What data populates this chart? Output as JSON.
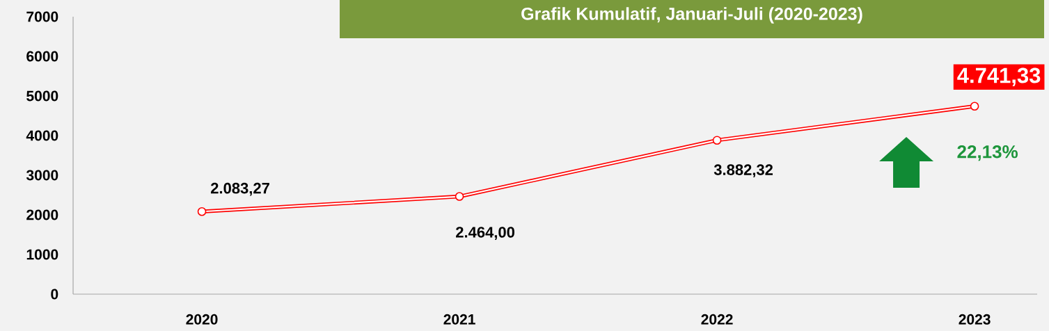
{
  "chart_data": {
    "type": "line",
    "title": "Grafik Kumulatif, Januari-Juli (2020-2023)",
    "categories": [
      "2020",
      "2021",
      "2022",
      "2023"
    ],
    "values": [
      2083.27,
      2464.0,
      3882.32,
      4741.33
    ],
    "value_labels": [
      "2.083,27",
      "2.464,00",
      "3.882,32",
      "4.741,33"
    ],
    "color": "#ff0000",
    "marker": "circle",
    "ylim": [
      0,
      7000
    ],
    "yticks": [
      0,
      1000,
      2000,
      3000,
      4000,
      5000,
      6000,
      7000
    ],
    "annotations": [
      "22,13%"
    ]
  }
}
